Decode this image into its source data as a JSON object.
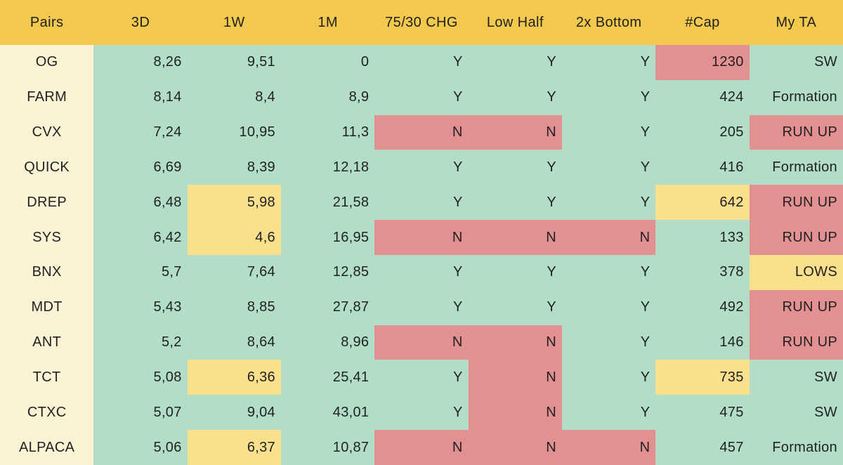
{
  "chart_data": {
    "type": "table",
    "columns": [
      "Pairs",
      "3D",
      "1W",
      "1M",
      "75/30 CHG",
      "Low Half",
      "2x Bottom",
      "#Cap",
      "My TA"
    ],
    "rows": [
      {
        "pair": "OG",
        "values": [
          "8,26",
          "9,51",
          "0",
          "Y",
          "Y",
          "Y",
          "1230",
          "SW"
        ],
        "highlights": [
          "teal",
          "teal",
          "teal",
          "teal",
          "teal",
          "teal",
          "red",
          "teal"
        ]
      },
      {
        "pair": "FARM",
        "values": [
          "8,14",
          "8,4",
          "8,9",
          "Y",
          "Y",
          "Y",
          "424",
          "Formation"
        ],
        "highlights": [
          "teal",
          "teal",
          "teal",
          "teal",
          "teal",
          "teal",
          "teal",
          "teal"
        ]
      },
      {
        "pair": "CVX",
        "values": [
          "7,24",
          "10,95",
          "11,3",
          "N",
          "N",
          "Y",
          "205",
          "RUN UP"
        ],
        "highlights": [
          "teal",
          "teal",
          "teal",
          "red",
          "red",
          "teal",
          "teal",
          "red"
        ]
      },
      {
        "pair": "QUICK",
        "values": [
          "6,69",
          "8,39",
          "12,18",
          "Y",
          "Y",
          "Y",
          "416",
          "Formation"
        ],
        "highlights": [
          "teal",
          "teal",
          "teal",
          "teal",
          "teal",
          "teal",
          "teal",
          "teal"
        ]
      },
      {
        "pair": "DREP",
        "values": [
          "6,48",
          "5,98",
          "21,58",
          "Y",
          "Y",
          "Y",
          "642",
          "RUN UP"
        ],
        "highlights": [
          "teal",
          "yellow",
          "teal",
          "teal",
          "teal",
          "teal",
          "yellow",
          "red"
        ]
      },
      {
        "pair": "SYS",
        "values": [
          "6,42",
          "4,6",
          "16,95",
          "N",
          "N",
          "N",
          "133",
          "RUN UP"
        ],
        "highlights": [
          "teal",
          "yellow",
          "teal",
          "red",
          "red",
          "red",
          "teal",
          "red"
        ]
      },
      {
        "pair": "BNX",
        "values": [
          "5,7",
          "7,64",
          "12,85",
          "Y",
          "Y",
          "Y",
          "378",
          "LOWS"
        ],
        "highlights": [
          "teal",
          "teal",
          "teal",
          "teal",
          "teal",
          "teal",
          "teal",
          "yellow"
        ]
      },
      {
        "pair": "MDT",
        "values": [
          "5,43",
          "8,85",
          "27,87",
          "Y",
          "Y",
          "Y",
          "492",
          "RUN UP"
        ],
        "highlights": [
          "teal",
          "teal",
          "teal",
          "teal",
          "teal",
          "teal",
          "teal",
          "red"
        ]
      },
      {
        "pair": "ANT",
        "values": [
          "5,2",
          "8,64",
          "8,96",
          "N",
          "N",
          "Y",
          "146",
          "RUN UP"
        ],
        "highlights": [
          "teal",
          "teal",
          "teal",
          "red",
          "red",
          "teal",
          "teal",
          "red"
        ]
      },
      {
        "pair": "TCT",
        "values": [
          "5,08",
          "6,36",
          "25,41",
          "Y",
          "N",
          "Y",
          "735",
          "SW"
        ],
        "highlights": [
          "teal",
          "yellow",
          "teal",
          "teal",
          "red",
          "teal",
          "yellow",
          "teal"
        ]
      },
      {
        "pair": "CTXC",
        "values": [
          "5,07",
          "9,04",
          "43,01",
          "Y",
          "N",
          "Y",
          "475",
          "SW"
        ],
        "highlights": [
          "teal",
          "teal",
          "teal",
          "teal",
          "red",
          "teal",
          "teal",
          "teal"
        ]
      },
      {
        "pair": "ALPACA",
        "values": [
          "5,06",
          "6,37",
          "10,87",
          "N",
          "N",
          "N",
          "457",
          "Formation"
        ],
        "highlights": [
          "teal",
          "yellow",
          "teal",
          "red",
          "red",
          "red",
          "teal",
          "teal"
        ]
      }
    ]
  },
  "colors": {
    "header_bg": "#F2C84D",
    "pair_col_bg": "#FCF3D5",
    "cell_teal": "#B2DEC8",
    "cell_red": "#E29091",
    "cell_yellow": "#FADF8D",
    "text": "#212121"
  }
}
